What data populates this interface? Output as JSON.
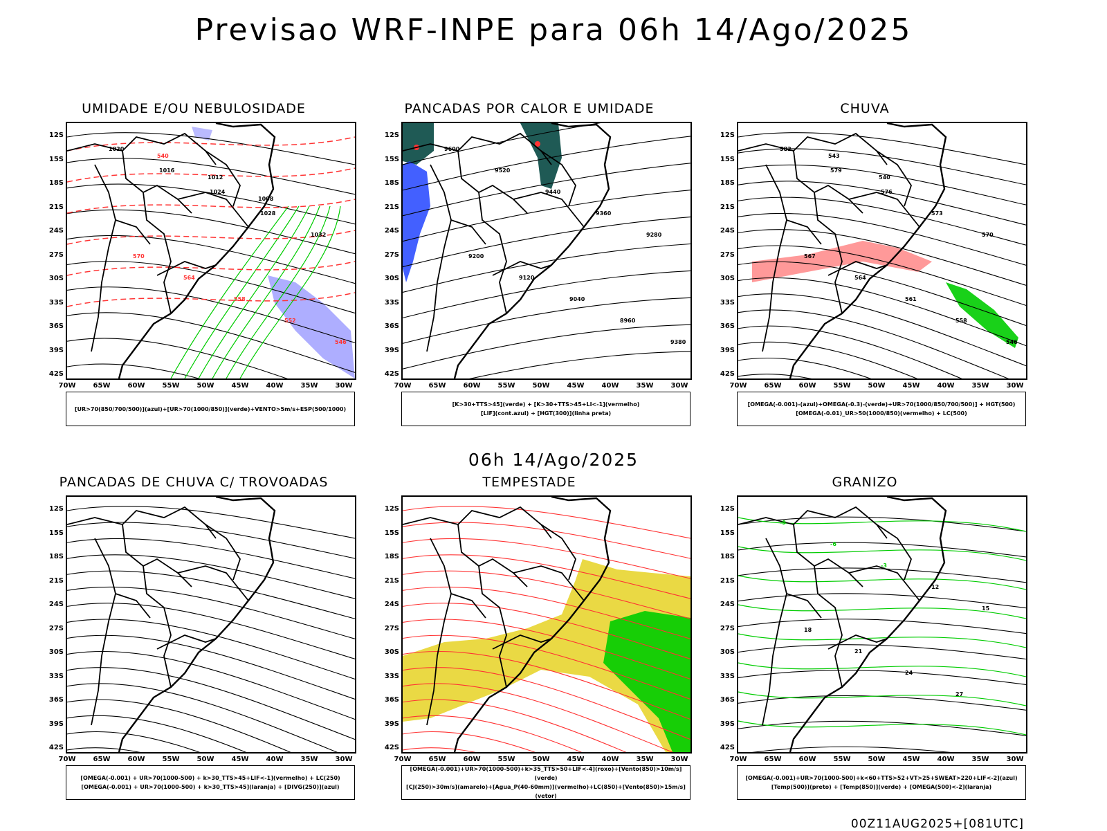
{
  "header": {
    "title": "Previsao WRF-INPE  para 06h 14/Ago/2025"
  },
  "center_time": "06h 14/Ago/2025",
  "footer_stamp": "00Z11AUG2025+[081UTC]",
  "axes": {
    "lat_labels": [
      "12S",
      "15S",
      "18S",
      "21S",
      "24S",
      "27S",
      "30S",
      "33S",
      "36S",
      "39S",
      "42S"
    ],
    "lon_labels": [
      "70W",
      "65W",
      "60W",
      "55W",
      "50W",
      "45W",
      "40W",
      "35W",
      "30W"
    ]
  },
  "colors": {
    "humidity_blue": "#8c8cff",
    "green": "#00cc00",
    "red": "#ff3333",
    "dark_teal": "#1f5a55",
    "yellow": "#e8d530",
    "deep_blue": "#2244ff",
    "orange": "#ff8800"
  },
  "panels": [
    {
      "id": "umidade",
      "title": "UMIDADE E/OU NEBULOSIDADE",
      "legend": [
        "[UR>70(850/700/500)](azul)+[UR>70(1000/850)](verde)+VENTO>5m/s+ESP(500/1000)"
      ],
      "contour_labels": [
        "1020",
        "1016",
        "1024",
        "1028",
        "1032",
        "570",
        "564",
        "558",
        "552",
        "546",
        "540",
        "1012",
        "1008"
      ],
      "marks": "vector"
    },
    {
      "id": "pancadas-calor",
      "title": "PANCADAS POR CALOR E UMIDADE",
      "legend": [
        "[K>30+TTS>45](verde) + [K>30+TTS>45+LI<-1](vermelho)",
        "[LIF](cont.azul) + [HGT(300)](linha preta)"
      ],
      "contour_labels": [
        "9600",
        "9520",
        "9440",
        "9360",
        "9280",
        "9200",
        "9120",
        "9040",
        "8960",
        "9380"
      ],
      "marks": "none"
    },
    {
      "id": "chuva",
      "title": "CHUVA",
      "legend": [
        "[OMEGA(-0.001)-(azul)+OMEGA(-0.3)-(verde)+UR>70(1000/850/700/500)] + HGT(500)",
        "[OMEGA(-0.01)_UR>50(1000/850)(vermelho) + LC(500)"
      ],
      "contour_labels": [
        "582",
        "579",
        "576",
        "573",
        "570",
        "567",
        "564",
        "561",
        "558",
        "546",
        "543",
        "540"
      ],
      "marks": "stream"
    },
    {
      "id": "pancadas-trovoadas",
      "title": "PANCADAS DE CHUVA C/ TROVOADAS",
      "legend": [
        "[OMEGA(-0.001) + UR>70(1000-500) + k>30_TTS>45+LIF<-1](vermelho) + LC(250)",
        "[OMEGA(-0.001) + UR>70(1000-500) + k>30_TTS>45](laranja) + [DIVG(250)](azul)"
      ],
      "contour_labels": [],
      "marks": "stream"
    },
    {
      "id": "tempestade",
      "title": "TEMPESTADE",
      "legend": [
        "[OMEGA(-0.001)+UR>70(1000-500)+k>35_TTS>50+LIF<-4](roxo)+[Vento(850)>10m/s](verde)",
        "[CJ(250)>30m/s](amarelo)+[Agua_P(40-60mm)](vermelho)+LC(850)+[Vento(850)>15m/s](vetor)"
      ],
      "contour_labels": [],
      "marks": "stream-red"
    },
    {
      "id": "granizo",
      "title": "GRANIZO",
      "legend": [
        "[OMEGA(-0.001)+UR>70(1000-500)+k<60+TTS>52+VT>25+SWEAT>220+LIF<-2](azul)",
        "[Temp(500)](preto) + [Temp(850)](verde) + [OMEGA(500)<-2](laranja)"
      ],
      "contour_labels": [
        "-9",
        "-6",
        "-3",
        "12",
        "15",
        "18",
        "21",
        "24",
        "27"
      ],
      "marks": "none"
    }
  ]
}
